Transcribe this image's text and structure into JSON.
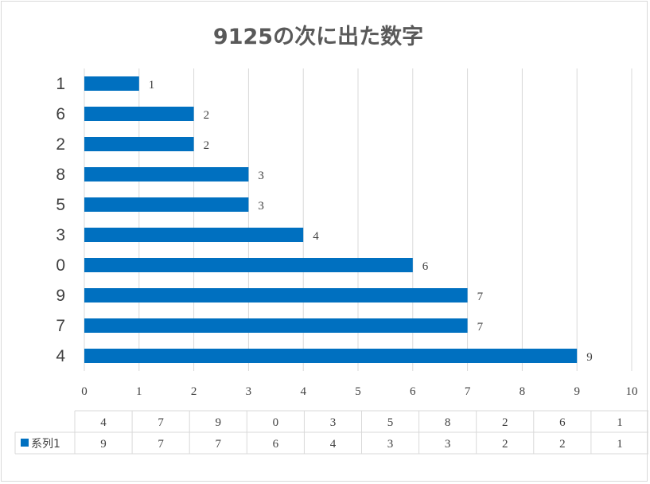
{
  "chart_data": {
    "type": "bar",
    "orientation": "horizontal",
    "title": "9125の次に出た数字",
    "categories": [
      "4",
      "7",
      "9",
      "0",
      "3",
      "5",
      "8",
      "2",
      "6",
      "1"
    ],
    "series": [
      {
        "name": "系列1",
        "values": [
          9,
          7,
          7,
          6,
          4,
          3,
          3,
          2,
          2,
          1
        ],
        "color": "#0070c0"
      }
    ],
    "xlim": [
      0,
      10
    ],
    "x_ticks": [
      "0",
      "1",
      "2",
      "3",
      "4",
      "5",
      "6",
      "7",
      "8",
      "9",
      "10"
    ],
    "grid": true,
    "data_labels": true,
    "data_table": true,
    "legend": "data-table-left"
  }
}
